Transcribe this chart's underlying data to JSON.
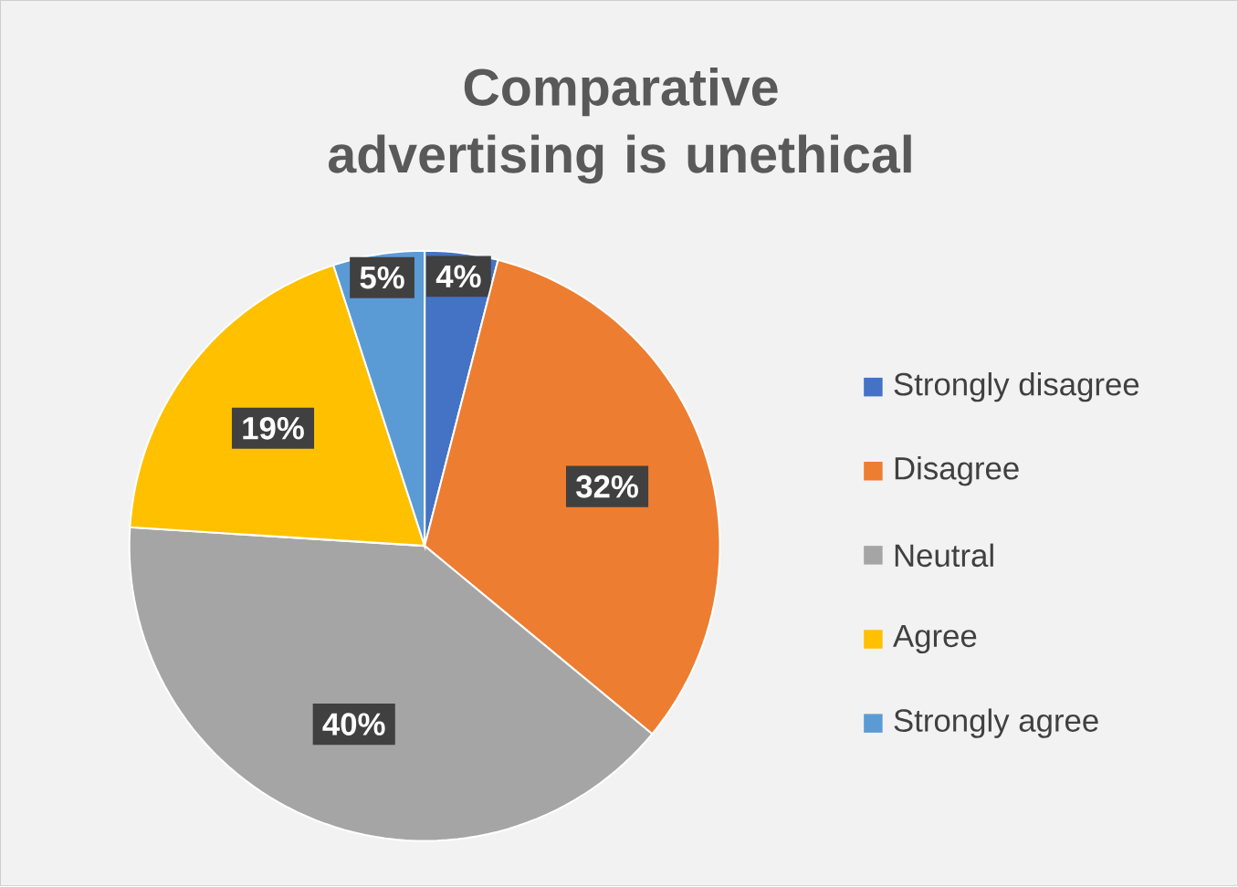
{
  "chart_data": {
    "type": "pie",
    "title": "Comparative advertising is unethical",
    "categories": [
      "Strongly disagree",
      "Disagree",
      "Neutral",
      "Agree",
      "Strongly agree"
    ],
    "values": [
      4,
      32,
      40,
      19,
      5
    ],
    "colors": [
      "#4472c4",
      "#ed7d31",
      "#a5a5a5",
      "#ffc000",
      "#5b9bd5"
    ],
    "value_labels": [
      "4%",
      "32%",
      "40%",
      "19%",
      "5%"
    ],
    "legend": "right"
  }
}
